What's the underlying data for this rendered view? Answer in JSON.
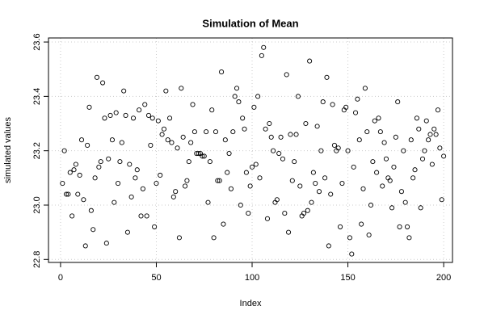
{
  "chart_data": {
    "type": "scatter",
    "title": "Simulation of Mean",
    "xlabel": "Index",
    "ylabel": "simulated values",
    "x": [
      1,
      2,
      3,
      4,
      5,
      6,
      7,
      8,
      9,
      10,
      11,
      12,
      13,
      14,
      15,
      16,
      17,
      18,
      19,
      20,
      21,
      22,
      23,
      24,
      25,
      26,
      27,
      28,
      29,
      30,
      31,
      32,
      33,
      34,
      35,
      36,
      37,
      38,
      39,
      40,
      41,
      42,
      43,
      44,
      45,
      46,
      47,
      48,
      49,
      50,
      51,
      52,
      53,
      54,
      55,
      56,
      57,
      58,
      59,
      60,
      61,
      62,
      63,
      64,
      65,
      66,
      67,
      68,
      69,
      70,
      71,
      72,
      73,
      74,
      75,
      76,
      77,
      78,
      79,
      80,
      81,
      82,
      83,
      84,
      85,
      86,
      87,
      88,
      89,
      90,
      91,
      92,
      93,
      94,
      95,
      96,
      97,
      98,
      99,
      100,
      101,
      102,
      103,
      104,
      105,
      106,
      107,
      108,
      109,
      110,
      111,
      112,
      113,
      114,
      115,
      116,
      117,
      118,
      119,
      120,
      121,
      122,
      123,
      124,
      125,
      126,
      127,
      128,
      129,
      130,
      131,
      132,
      133,
      134,
      135,
      136,
      137,
      138,
      139,
      140,
      141,
      142,
      143,
      144,
      145,
      146,
      147,
      148,
      149,
      150,
      151,
      152,
      153,
      154,
      155,
      156,
      157,
      158,
      159,
      160,
      161,
      162,
      163,
      164,
      165,
      166,
      167,
      168,
      169,
      170,
      171,
      172,
      173,
      174,
      175,
      176,
      177,
      178,
      179,
      180,
      181,
      182,
      183,
      184,
      185,
      186,
      187,
      188,
      189,
      190,
      191,
      192,
      193,
      194,
      195,
      196,
      197,
      198,
      199,
      200
    ],
    "values": [
      23.08,
      23.2,
      23.04,
      23.04,
      23.12,
      22.96,
      23.13,
      23.15,
      23.04,
      23.11,
      23.24,
      23.02,
      22.85,
      23.22,
      23.36,
      22.98,
      22.91,
      23.1,
      23.47,
      23.14,
      23.16,
      23.45,
      23.32,
      22.86,
      23.17,
      23.33,
      23.24,
      23.01,
      23.34,
      23.08,
      23.16,
      23.23,
      23.42,
      23.33,
      22.9,
      23.15,
      23.03,
      23.32,
      23.1,
      23.13,
      23.35,
      22.96,
      23.06,
      23.37,
      22.96,
      23.33,
      23.22,
      23.32,
      22.92,
      23.08,
      23.31,
      23.11,
      23.26,
      23.28,
      23.42,
      23.24,
      23.32,
      23.23,
      23.03,
      23.05,
      23.21,
      22.88,
      23.43,
      23.25,
      23.07,
      23.09,
      23.16,
      23.23,
      23.37,
      23.27,
      23.19,
      23.19,
      23.19,
      23.18,
      23.18,
      23.27,
      23.01,
      23.16,
      23.35,
      22.88,
      23.27,
      23.09,
      23.09,
      23.49,
      22.93,
      23.24,
      23.12,
      23.19,
      23.06,
      23.27,
      23.4,
      23.43,
      23.38,
      23.0,
      23.32,
      23.28,
      23.12,
      22.97,
      23.07,
      23.14,
      23.36,
      23.15,
      23.4,
      23.1,
      23.55,
      23.58,
      23.28,
      22.95,
      23.3,
      23.25,
      23.2,
      23.01,
      23.02,
      23.19,
      23.25,
      23.17,
      22.97,
      23.48,
      22.9,
      23.26,
      23.09,
      23.16,
      23.26,
      23.4,
      23.07,
      22.96,
      22.97,
      23.3,
      22.98,
      23.53,
      23.01,
      23.12,
      23.08,
      23.29,
      23.05,
      23.2,
      23.38,
      23.1,
      23.47,
      22.85,
      23.04,
      23.37,
      23.22,
      23.2,
      23.21,
      22.92,
      23.08,
      23.35,
      23.36,
      23.2,
      22.88,
      22.82,
      23.14,
      23.34,
      23.39,
      23.24,
      22.93,
      23.06,
      23.43,
      23.27,
      22.89,
      23.0,
      23.16,
      23.31,
      23.12,
      23.32,
      23.27,
      23.07,
      23.23,
      23.17,
      23.1,
      23.09,
      22.99,
      23.14,
      23.25,
      23.38,
      22.92,
      23.05,
      23.2,
      23.01,
      22.92,
      22.88,
      23.24,
      23.1,
      23.13,
      23.32,
      23.28,
      22.99,
      23.17,
      23.2,
      23.31,
      23.24,
      23.26,
      23.15,
      23.28,
      23.26,
      23.35,
      23.21,
      23.02,
      23.18
    ],
    "color": "#000000",
    "xlim": [
      -6.3,
      204.6
    ],
    "xticks": [
      0,
      50,
      100,
      150,
      200
    ],
    "ylim": [
      22.789,
      23.615
    ],
    "yticks": [
      22.8,
      {
        "value": 23,
        "label": "23.0"
      },
      23.2,
      23.4,
      23.6
    ],
    "grid": true
  }
}
